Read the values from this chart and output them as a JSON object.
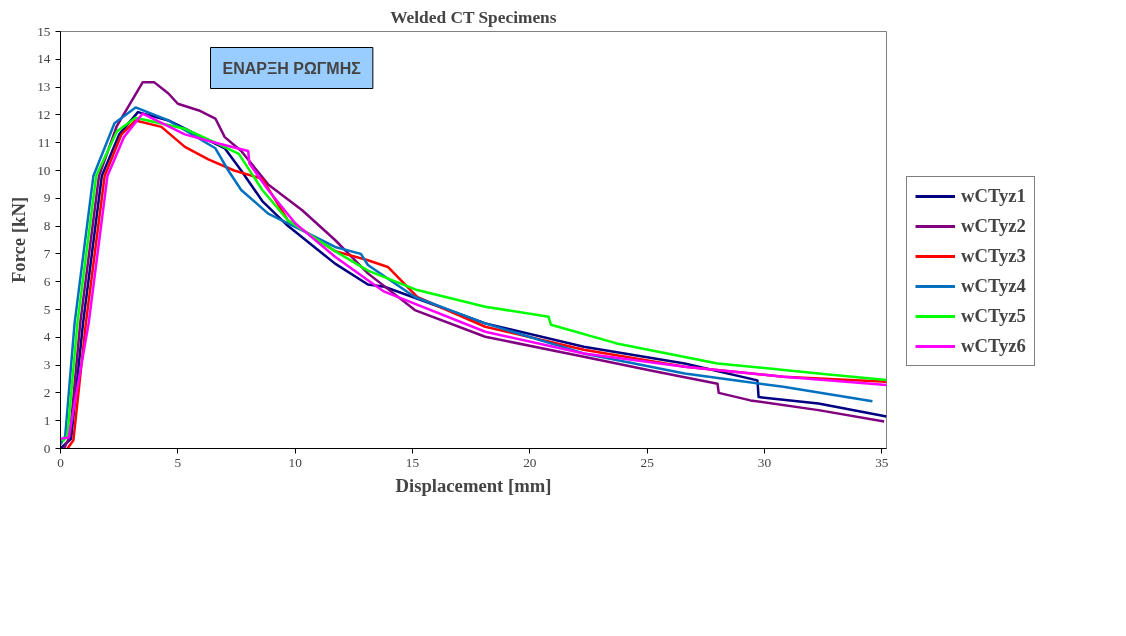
{
  "chart_data": {
    "type": "line",
    "title": "Welded CT Specimens",
    "xlabel": "Displacement [mm]",
    "ylabel": "Force [kN]",
    "annotations": [
      "ΕΝΑΡΞΗ ΡΩΓΜΗΣ"
    ],
    "xlim": [
      0,
      35.2
    ],
    "ylim": [
      0,
      15
    ],
    "xticks": [
      0,
      5,
      10,
      15,
      20,
      25,
      30,
      35
    ],
    "yticks": [
      0,
      1,
      2,
      3,
      4,
      5,
      6,
      7,
      8,
      9,
      10,
      11,
      12,
      13,
      14,
      15
    ],
    "grid": false,
    "legend": "right",
    "series": [
      {
        "name": "wCTyz1",
        "color": "#000080",
        "x": [
          0,
          0.45,
          0.96,
          1.76,
          2.5,
          3.3,
          4.6,
          7.0,
          7.7,
          8.6,
          9.7,
          11.7,
          13.1,
          13.8,
          18.1,
          22.3,
          26.6,
          29.7,
          29.75,
          32.3,
          35.2
        ],
        "values": [
          0,
          0.35,
          4.5,
          9.8,
          11.3,
          12.1,
          11.8,
          10.8,
          10.0,
          8.9,
          8.0,
          6.65,
          5.9,
          5.82,
          4.5,
          3.66,
          3.06,
          2.45,
          1.85,
          1.62,
          1.15
        ]
      },
      {
        "name": "wCTyz2",
        "color": "#800080",
        "x": [
          0.15,
          0.4,
          0.84,
          1.64,
          2.4,
          3.5,
          4.0,
          4.6,
          5.0,
          5.9,
          6.6,
          7.0,
          7.7,
          8.85,
          10.3,
          11.7,
          13.1,
          15.1,
          18.1,
          22.3,
          25.2,
          28.0,
          28.05,
          29.4,
          32.3,
          35.1
        ],
        "values": [
          0,
          0.45,
          4.5,
          9.8,
          11.6,
          13.17,
          13.17,
          12.77,
          12.4,
          12.16,
          11.87,
          11.2,
          10.7,
          9.5,
          8.57,
          7.5,
          6.3,
          4.98,
          4.02,
          3.3,
          2.8,
          2.33,
          2.0,
          1.73,
          1.38,
          0.97
        ]
      },
      {
        "name": "wCTyz3",
        "color": "#ff0000",
        "x": [
          0.3,
          0.55,
          1.08,
          1.88,
          2.6,
          3.2,
          4.3,
          5.3,
          6.3,
          7.4,
          8.6,
          9.7,
          11.7,
          13.1,
          13.95,
          15.2,
          18.1,
          22.3,
          26.6,
          30.8,
          35.2
        ],
        "values": [
          0,
          0.3,
          4.5,
          9.8,
          11.3,
          11.8,
          11.57,
          10.85,
          10.4,
          10.0,
          9.7,
          8.2,
          7.1,
          6.77,
          6.53,
          5.45,
          4.38,
          3.55,
          2.94,
          2.58,
          2.4
        ]
      },
      {
        "name": "wCTyz4",
        "color": "#0070c0",
        "x": [
          0,
          0.2,
          0.6,
          1.4,
          2.3,
          3.2,
          4.6,
          6.6,
          7.15,
          7.7,
          8.85,
          10.3,
          11.7,
          12.8,
          13.1,
          15.1,
          18.1,
          22.3,
          26.6,
          30.8,
          34.6
        ],
        "values": [
          0.15,
          0.45,
          4.5,
          9.8,
          11.7,
          12.27,
          11.8,
          10.8,
          10.0,
          9.3,
          8.45,
          7.85,
          7.25,
          7.0,
          6.6,
          5.45,
          4.5,
          3.42,
          2.7,
          2.22,
          1.7
        ]
      },
      {
        "name": "wCTyz5",
        "color": "#00ff00",
        "x": [
          0.1,
          0.3,
          0.72,
          1.52,
          2.4,
          3.2,
          5.3,
          6.6,
          7.6,
          8.6,
          9.7,
          11.7,
          13.1,
          15.2,
          18.1,
          20.8,
          20.9,
          23.7,
          28.0,
          32.3,
          35.2
        ],
        "values": [
          0.25,
          0.5,
          4.5,
          9.8,
          11.4,
          11.9,
          11.5,
          11.0,
          10.6,
          9.3,
          8.2,
          7.1,
          6.4,
          5.7,
          5.1,
          4.74,
          4.45,
          3.78,
          3.06,
          2.7,
          2.46
        ]
      },
      {
        "name": "wCTyz6",
        "color": "#ff00ff",
        "x": [
          0,
          0.35,
          1.2,
          2.0,
          2.7,
          3.5,
          5.3,
          6.6,
          8.0,
          8.05,
          8.85,
          10.0,
          11.7,
          13.1,
          13.8,
          18.1,
          22.3,
          26.6,
          30.8,
          35.2
        ],
        "values": [
          0.35,
          0.4,
          4.5,
          9.8,
          11.2,
          12.05,
          11.3,
          11.0,
          10.7,
          10.25,
          9.3,
          8.1,
          6.9,
          6.05,
          5.64,
          4.2,
          3.42,
          2.94,
          2.58,
          2.28
        ]
      }
    ]
  }
}
